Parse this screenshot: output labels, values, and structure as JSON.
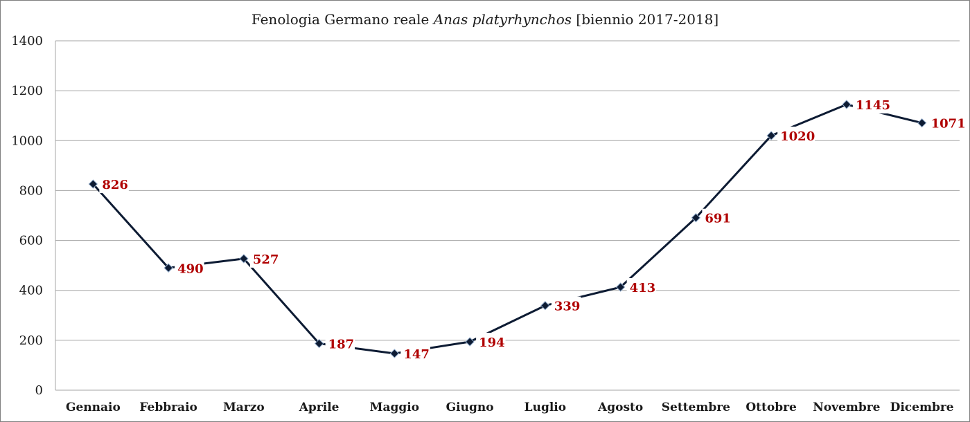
{
  "chart_data": {
    "type": "line",
    "title": {
      "prefix": "Fenologia Germano reale ",
      "species": "Anas platyrhynchos",
      "suffix": " [biennio 2017-2018]"
    },
    "categories": [
      "Gennaio",
      "Febbraio",
      "Marzo",
      "Aprile",
      "Maggio",
      "Giugno",
      "Luglio",
      "Agosto",
      "Settembre",
      "Ottobre",
      "Novembre",
      "Dicembre"
    ],
    "series": [
      {
        "values": [
          826,
          490,
          527,
          187,
          147,
          194,
          339,
          413,
          691,
          1020,
          1145,
          1071
        ]
      }
    ],
    "ylim": [
      0,
      1400
    ],
    "yticks": [
      0,
      200,
      400,
      600,
      800,
      1000,
      1200,
      1400
    ],
    "grid": true,
    "legend": "none",
    "colors": {
      "line": "#0d1b33",
      "marker": "#0d1b33",
      "data_label": "#b00000",
      "grid": "#a6a6a6"
    }
  }
}
